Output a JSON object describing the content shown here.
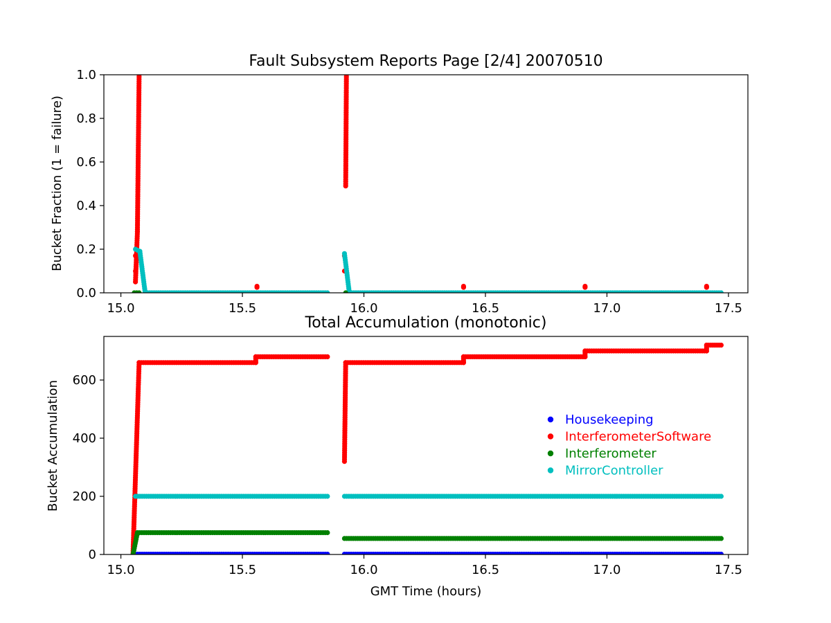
{
  "chart_data": [
    {
      "type": "scatter",
      "title": "Fault Subsystem Reports Page [2/4] 20070510",
      "xlabel": "",
      "ylabel": "Bucket Fraction (1 = failure)",
      "xlim": [
        14.93,
        17.58
      ],
      "ylim": [
        0,
        1.0
      ],
      "xticks": [
        "15.0",
        "15.5",
        "16.0",
        "16.5",
        "17.0",
        "17.5"
      ],
      "yticks": [
        "0.0",
        "0.2",
        "0.4",
        "0.6",
        "0.8",
        "1.0"
      ],
      "grid": false,
      "series": [
        {
          "name": "InterferometerSoftware",
          "color": "#ff0000",
          "segments": [
            {
              "x_start": 15.06,
              "x_end": 15.068,
              "y_start": 0.05,
              "y_end": 0.28
            },
            {
              "x_start": 15.068,
              "x_end": 15.075,
              "y_start": 0.28,
              "y_end": 1.0
            },
            {
              "x_start": 15.925,
              "x_end": 15.928,
              "y_start": 0.49,
              "y_end": 1.0
            }
          ],
          "points": [
            {
              "x": 15.06,
              "y": 0.1
            },
            {
              "x": 15.06,
              "y": 0.17
            },
            {
              "x": 15.92,
              "y": 0.1
            },
            {
              "x": 15.92,
              "y": 0.17
            },
            {
              "x": 15.56,
              "y": 0.025
            },
            {
              "x": 15.56,
              "y": 0.03
            },
            {
              "x": 16.41,
              "y": 0.025
            },
            {
              "x": 16.41,
              "y": 0.03
            },
            {
              "x": 16.91,
              "y": 0.025
            },
            {
              "x": 16.91,
              "y": 0.03
            },
            {
              "x": 17.41,
              "y": 0.025
            },
            {
              "x": 17.41,
              "y": 0.03
            }
          ]
        },
        {
          "name": "MirrorController",
          "color": "#00bfbf",
          "segments": [
            {
              "x_start": 15.06,
              "x_end": 15.078,
              "y_start": 0.2,
              "y_end": 0.19
            },
            {
              "x_start": 15.078,
              "x_end": 15.1,
              "y_start": 0.19,
              "y_end": 0.0
            },
            {
              "x_start": 15.1,
              "x_end": 15.85,
              "y_start": 0.0,
              "y_end": 0.0
            },
            {
              "x_start": 15.92,
              "x_end": 15.94,
              "y_start": 0.18,
              "y_end": 0.0
            },
            {
              "x_start": 15.94,
              "x_end": 17.47,
              "y_start": 0.0,
              "y_end": 0.0
            }
          ],
          "points": []
        },
        {
          "name": "Interferometer",
          "color": "#008000",
          "segments": [
            {
              "x_start": 15.055,
              "x_end": 15.075,
              "y_start": 0.0,
              "y_end": 0.0
            }
          ],
          "points": [
            {
              "x": 15.925,
              "y": 0.0
            }
          ]
        }
      ]
    },
    {
      "type": "scatter",
      "title": "Total Accumulation (monotonic)",
      "xlabel": "GMT Time (hours)",
      "ylabel": "Bucket Accumulation",
      "xlim": [
        14.93,
        17.58
      ],
      "ylim": [
        0,
        750
      ],
      "xticks": [
        "15.0",
        "15.5",
        "16.0",
        "16.5",
        "17.0",
        "17.5"
      ],
      "yticks": [
        "0",
        "200",
        "400",
        "600"
      ],
      "grid": false,
      "legend_position": "center-right",
      "series": [
        {
          "name": "Housekeeping",
          "color": "#0000ff",
          "segments": [
            {
              "x_start": 15.06,
              "x_end": 15.85,
              "y_start": 1,
              "y_end": 1
            },
            {
              "x_start": 15.92,
              "x_end": 17.47,
              "y_start": 1,
              "y_end": 1
            }
          ]
        },
        {
          "name": "InterferometerSoftware",
          "color": "#ff0000",
          "segments": [
            {
              "x_start": 15.05,
              "x_end": 15.075,
              "y_start": 5,
              "y_end": 660
            },
            {
              "x_start": 15.075,
              "x_end": 15.555,
              "y_start": 660,
              "y_end": 660
            },
            {
              "x_start": 15.555,
              "x_end": 15.555,
              "y_start": 660,
              "y_end": 680
            },
            {
              "x_start": 15.555,
              "x_end": 15.85,
              "y_start": 680,
              "y_end": 680
            },
            {
              "x_start": 15.92,
              "x_end": 15.925,
              "y_start": 320,
              "y_end": 660
            },
            {
              "x_start": 15.925,
              "x_end": 16.41,
              "y_start": 660,
              "y_end": 660
            },
            {
              "x_start": 16.41,
              "x_end": 16.41,
              "y_start": 660,
              "y_end": 680
            },
            {
              "x_start": 16.41,
              "x_end": 16.91,
              "y_start": 680,
              "y_end": 680
            },
            {
              "x_start": 16.91,
              "x_end": 16.91,
              "y_start": 680,
              "y_end": 700
            },
            {
              "x_start": 16.91,
              "x_end": 17.41,
              "y_start": 700,
              "y_end": 700
            },
            {
              "x_start": 17.41,
              "x_end": 17.41,
              "y_start": 700,
              "y_end": 720
            },
            {
              "x_start": 17.41,
              "x_end": 17.47,
              "y_start": 720,
              "y_end": 720
            }
          ]
        },
        {
          "name": "Interferometer",
          "color": "#008000",
          "segments": [
            {
              "x_start": 15.05,
              "x_end": 15.068,
              "y_start": 0,
              "y_end": 75
            },
            {
              "x_start": 15.068,
              "x_end": 15.85,
              "y_start": 75,
              "y_end": 75
            },
            {
              "x_start": 15.92,
              "x_end": 17.47,
              "y_start": 55,
              "y_end": 55
            }
          ]
        },
        {
          "name": "MirrorController",
          "color": "#00bfbf",
          "segments": [
            {
              "x_start": 15.06,
              "x_end": 15.85,
              "y_start": 200,
              "y_end": 200
            },
            {
              "x_start": 15.92,
              "x_end": 17.47,
              "y_start": 200,
              "y_end": 200
            }
          ]
        }
      ]
    }
  ]
}
